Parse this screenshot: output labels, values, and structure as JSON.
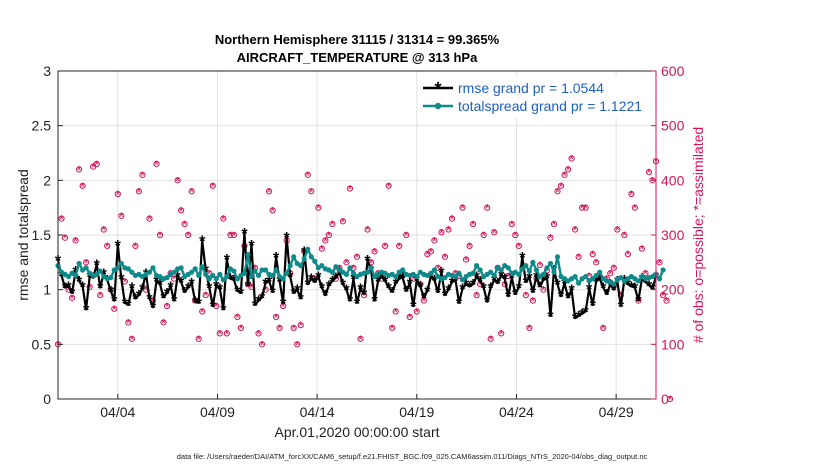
{
  "chart_data": {
    "type": "line",
    "title_line1": "Northern Hemisphere 31115 / 31314 = 99.365%",
    "title_line2": "AIRCRAFT_TEMPERATURE @ 313 hPa",
    "xlabel": "Apr.01,2020 00:00:00 start",
    "ylabel_left": "rmse and totalspread",
    "ylabel_right": "# of obs: o=possible; *=assimilated",
    "footer": "data file: /Users/raeder/DAI/ATM_forcXX/CAM6_setup/f.e21.FHIST_BGC.f09_025.CAM6assim.011/Diags_NTrS_2020-04/obs_diag_output.nc",
    "x_ticks": [
      {
        "label": "04/04",
        "day": 4
      },
      {
        "label": "04/09",
        "day": 9
      },
      {
        "label": "04/14",
        "day": 14
      },
      {
        "label": "04/19",
        "day": 19
      },
      {
        "label": "04/24",
        "day": 24
      },
      {
        "label": "04/29",
        "day": 29
      }
    ],
    "xlim": [
      1,
      31
    ],
    "ylim_left": [
      0,
      3
    ],
    "ylim_right": [
      0,
      600
    ],
    "y_ticks_left": [
      "0",
      "0.5",
      "1",
      "1.5",
      "2",
      "2.5",
      "3"
    ],
    "y_ticks_right": [
      "0",
      "100",
      "200",
      "300",
      "400",
      "500",
      "600"
    ],
    "grid": true,
    "legend_position": "top-right",
    "colors": {
      "rmse": "#000000",
      "spread": "#0f8a8a",
      "obs": "#d4145a",
      "legend_text": "#1f5fc4"
    },
    "series": [
      {
        "name": "rmse grand pr = 1.0544",
        "axis": "left",
        "values": [
          1.27,
          1.13,
          1.02,
          1.03,
          0.97,
          1.17,
          1.08,
          1.03,
          0.82,
          1.12,
          1.11,
          1.23,
          1.02,
          1.15,
          1.09,
          0.99,
          0.9,
          1.41,
          1.1,
          0.88,
          0.86,
          1.02,
          0.92,
          0.95,
          1.01,
          1.15,
          0.92,
          0.84,
          1.08,
          1.05,
          0.93,
          0.97,
          1.03,
          0.9,
          1.12,
          1.07,
          0.98,
          1.02,
          1.06,
          0.89,
          0.88,
          1.45,
          1.18,
          1.02,
          0.85,
          1.04,
          1.01,
          0.82,
          1.28,
          1.1,
          1.09,
          0.99,
          0.97,
          1.52,
          1.04,
          1.41,
          0.86,
          0.9,
          0.93,
          1.06,
          1.08,
          0.98,
          1.3,
          1.08,
          0.88,
          1.48,
          1.12,
          0.97,
          1.0,
          0.92,
          1.35,
          1.05,
          1.1,
          1.07,
          1.12,
          1.02,
          0.95,
          1.04,
          1.08,
          1.11,
          1.16,
          1.05,
          1.0,
          0.9,
          1.1,
          0.88,
          1.01,
          0.96,
          1.27,
          1.18,
          0.9,
          1.08,
          1.12,
          1.08,
          1.02,
          0.98,
          1.06,
          1.1,
          1.11,
          0.99,
          1.06,
          0.85,
          1.09,
          1.03,
          0.93,
          0.99,
          1.12,
          1.09,
          0.98,
          1.16,
          0.95,
          1.0,
          1.07,
          1.09,
          0.88,
          1.01,
          1.05,
          1.03,
          1.05,
          1.12,
          1.08,
          1.02,
          0.89,
          1.02,
          1.09,
          1.06,
          1.13,
          1.1,
          0.94,
          1.11,
          0.96,
          1.02,
          1.3,
          1.07,
          1.11,
          0.98,
          1.12,
          1.03,
          1.09,
          1.11,
          0.76,
          1.18,
          1.05,
          0.94,
          1.06,
          0.93,
          1.0,
          0.74,
          0.76,
          0.78,
          0.8,
          1.01,
          0.86,
          1.08,
          1.1,
          1.02,
          0.96,
          1.05,
          1.0,
          1.08,
          0.85,
          1.09,
          1.05,
          1.03,
          1.02,
          0.9,
          1.1,
          1.07,
          1.04,
          1.01,
          1.12
        ]
      },
      {
        "name": "totalspread grand pr = 1.1221",
        "axis": "left",
        "values": [
          1.22,
          1.16,
          1.14,
          1.12,
          1.15,
          1.13,
          1.24,
          1.18,
          1.2,
          1.15,
          1.13,
          1.14,
          1.17,
          1.12,
          1.1,
          1.11,
          1.18,
          1.2,
          1.24,
          1.2,
          1.19,
          1.16,
          1.13,
          1.14,
          1.12,
          1.14,
          1.16,
          1.2,
          1.13,
          1.12,
          1.1,
          1.11,
          1.14,
          1.16,
          1.19,
          1.2,
          1.12,
          1.14,
          1.16,
          1.19,
          1.13,
          1.21,
          1.14,
          1.1,
          1.13,
          1.1,
          1.14,
          1.09,
          1.12,
          1.19,
          1.17,
          1.1,
          1.13,
          1.15,
          1.32,
          1.12,
          1.17,
          1.13,
          1.18,
          1.18,
          1.14,
          1.13,
          1.18,
          1.12,
          1.1,
          1.15,
          1.22,
          1.3,
          1.24,
          1.22,
          1.28,
          1.37,
          1.3,
          1.26,
          1.2,
          1.22,
          1.19,
          1.18,
          1.16,
          1.21,
          1.18,
          1.16,
          1.14,
          1.2,
          1.15,
          1.12,
          1.14,
          1.15,
          1.16,
          1.2,
          1.12,
          1.14,
          1.16,
          1.15,
          1.13,
          1.14,
          1.12,
          1.16,
          1.18,
          1.14,
          1.13,
          1.14,
          1.12,
          1.16,
          1.14,
          1.13,
          1.15,
          1.18,
          1.12,
          1.1,
          1.11,
          1.14,
          1.13,
          1.12,
          1.15,
          1.09,
          1.12,
          1.14,
          1.15,
          1.22,
          1.18,
          1.12,
          1.14,
          1.16,
          1.13,
          1.2,
          1.18,
          1.22,
          1.2,
          1.15,
          1.16,
          1.14,
          1.19,
          1.22,
          1.17,
          1.25,
          1.18,
          1.12,
          1.14,
          1.2,
          1.24,
          1.16,
          1.3,
          1.12,
          1.1,
          1.08,
          1.1,
          1.12,
          1.06,
          1.1,
          1.12,
          1.08,
          1.1,
          1.13,
          1.16,
          1.1,
          1.08,
          1.07,
          1.05,
          1.09,
          1.11,
          1.08,
          1.1,
          1.12,
          1.1,
          1.08,
          1.12,
          1.1,
          1.11,
          1.12,
          1.14,
          1.1,
          1.18
        ]
      },
      {
        "name": "# of obs (possible / assimilated)",
        "axis": "right",
        "values": [
          100,
          330,
          295,
          200,
          185,
          290,
          420,
          390,
          250,
          205,
          425,
          430,
          190,
          310,
          280,
          200,
          165,
          375,
          335,
          215,
          140,
          110,
          280,
          380,
          410,
          200,
          330,
          180,
          430,
          300,
          140,
          170,
          230,
          220,
          400,
          345,
          320,
          300,
          380,
          180,
          110,
          160,
          190,
          230,
          390,
          170,
          120,
          330,
          120,
          300,
          300,
          150,
          130,
          280,
          210,
          205,
          240,
          120,
          100,
          200,
          380,
          345,
          150,
          130,
          170,
          290,
          230,
          130,
          100,
          135,
          270,
          410,
          380,
          220,
          350,
          275,
          290,
          300,
          320,
          220,
          240,
          325,
          250,
          385,
          240,
          260,
          110,
          190,
          310,
          250,
          270,
          230,
          220,
          280,
          390,
          130,
          160,
          280,
          230,
          300,
          150,
          220,
          160,
          210,
          180,
          265,
          270,
          290,
          240,
          305,
          260,
          310,
          330,
          230,
          225,
          350,
          255,
          280,
          320,
          190,
          210,
          300,
          350,
          110,
          305,
          240,
          120,
          210,
          225,
          320,
          300,
          280,
          240,
          190,
          130,
          180,
          220,
          245,
          200,
          235,
          295,
          320,
          380,
          390,
          410,
          420,
          440,
          310,
          260,
          350,
          350,
          225,
          265,
          250,
          225,
          130,
          220,
          230,
          240,
          310,
          190,
          300,
          265,
          375,
          350,
          180,
          275,
          230,
          415,
          400,
          435,
          250,
          190,
          180,
          0
        ]
      }
    ]
  }
}
